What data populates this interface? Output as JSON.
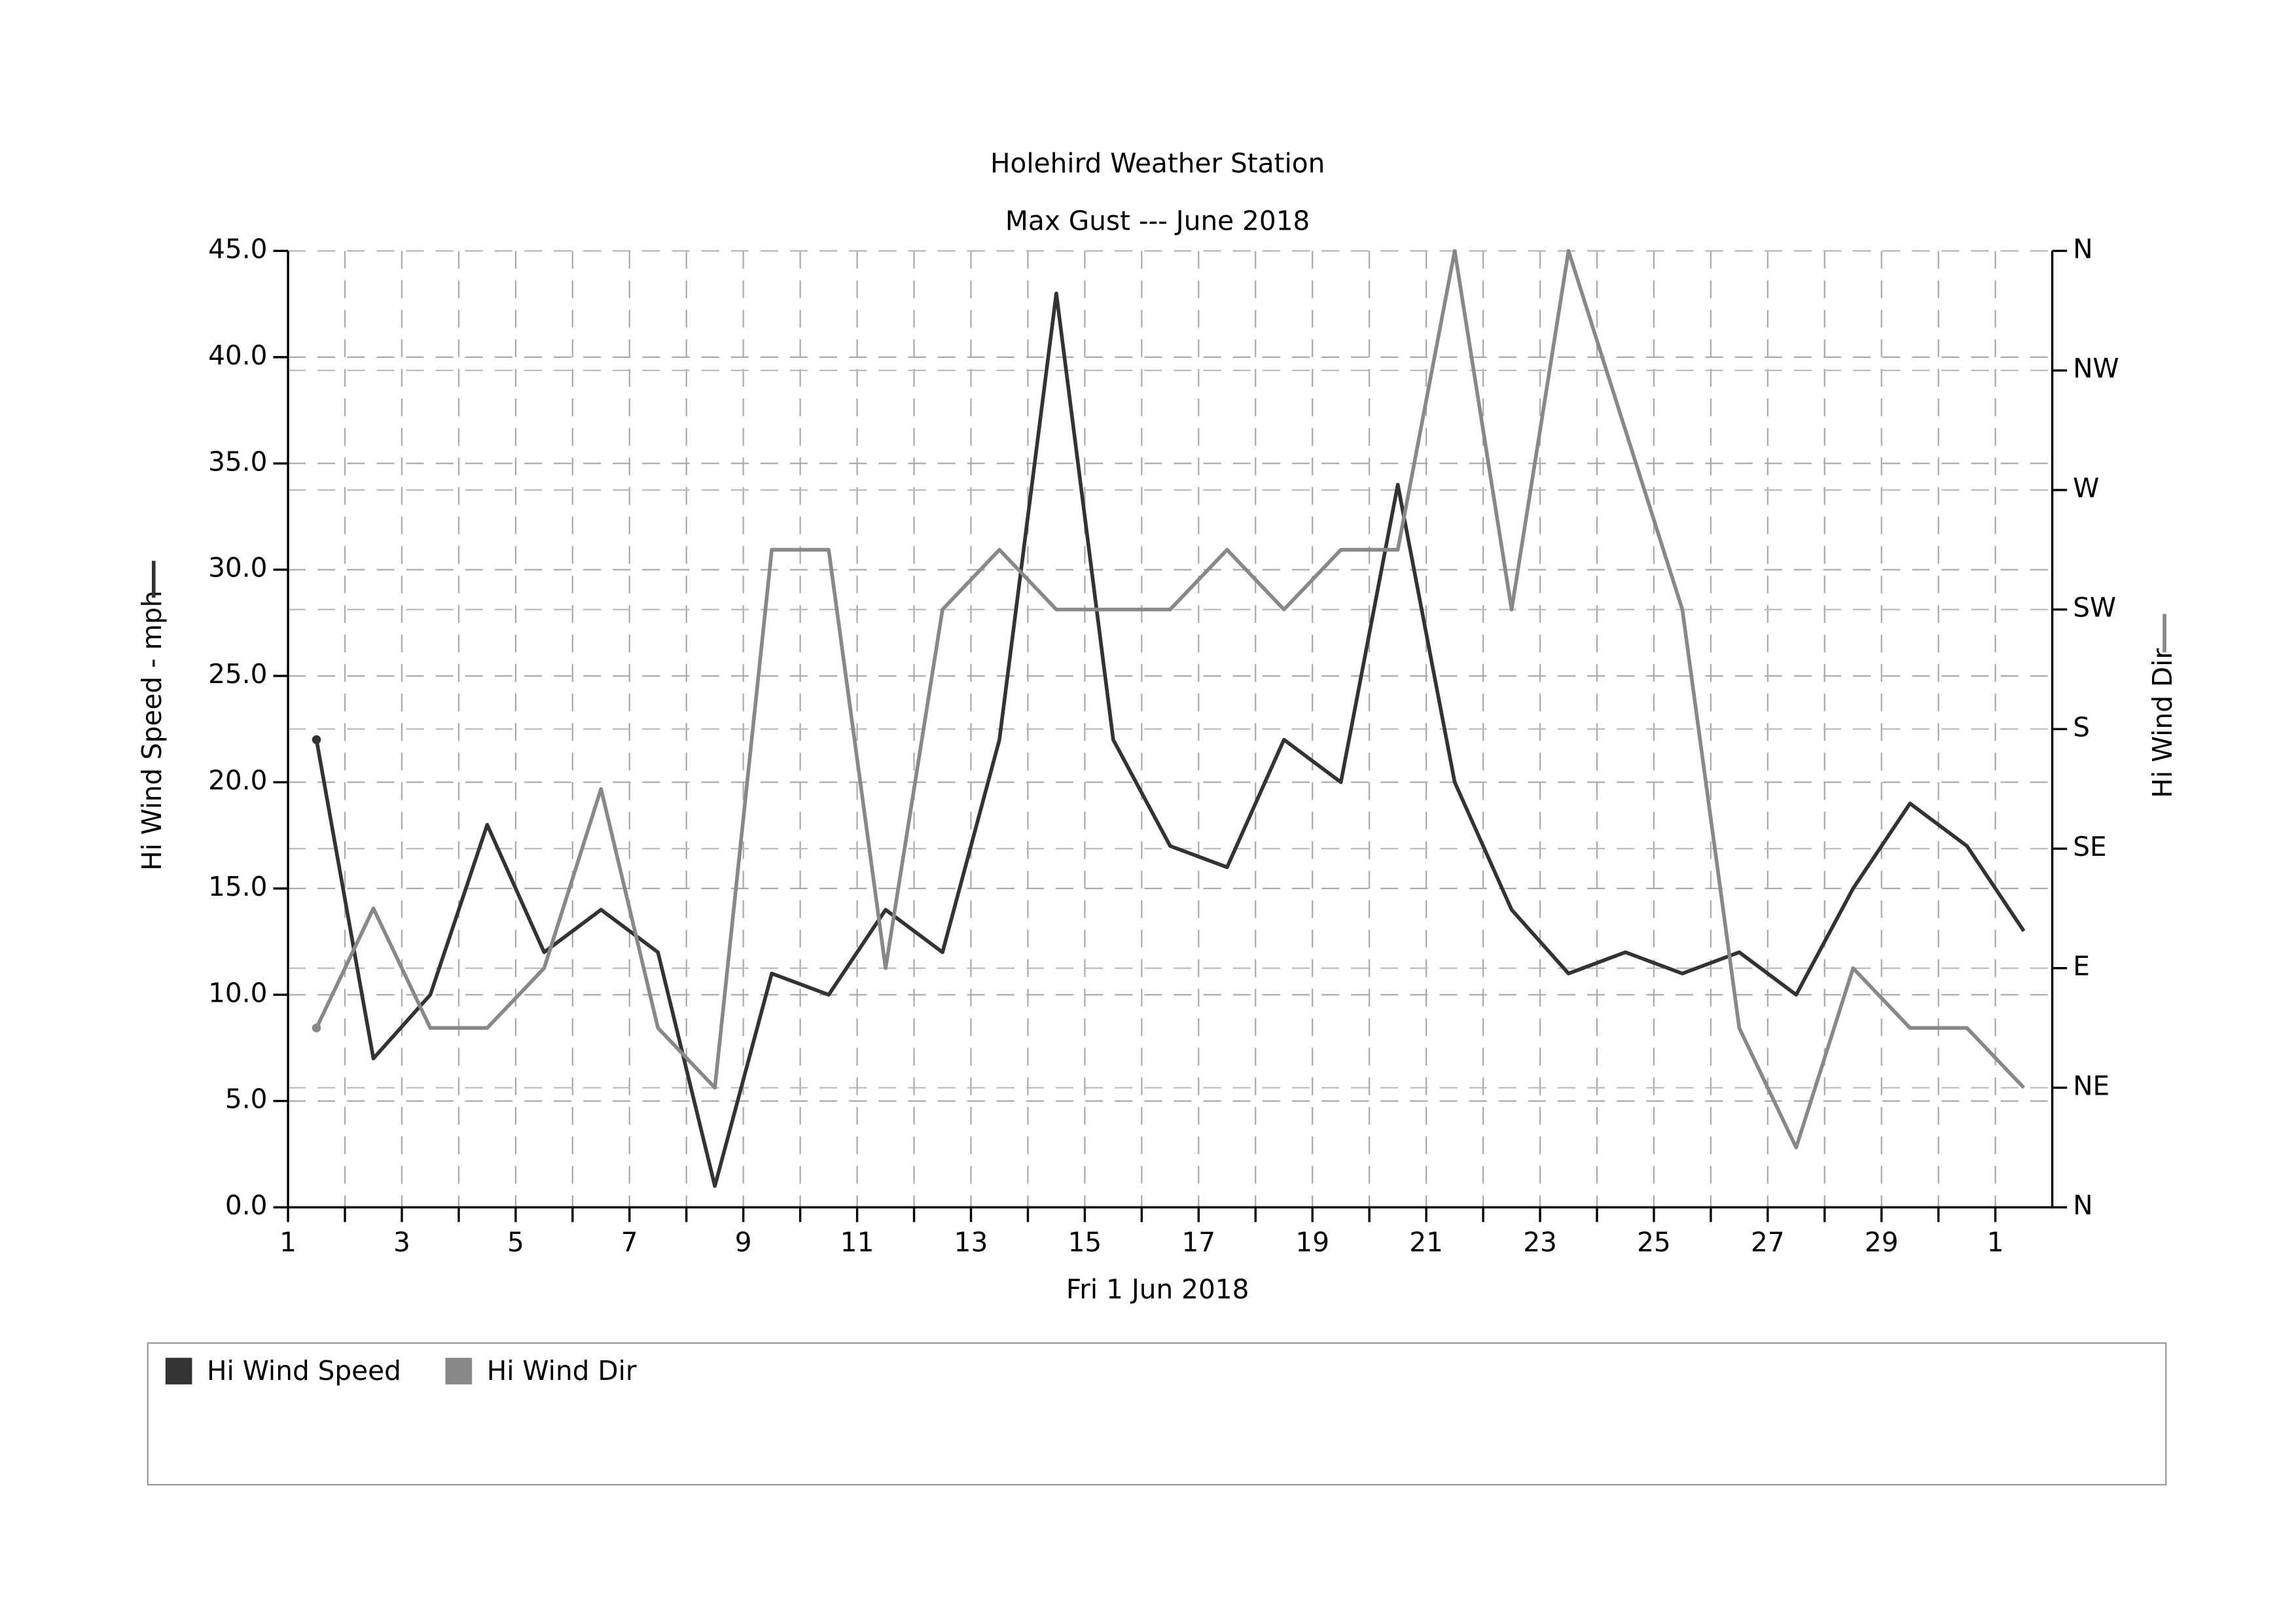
{
  "chart_data": {
    "type": "line",
    "title": "Holehird Weather Station",
    "subtitle": "Max Gust --- June 2018",
    "x_label": "Fri 1 Jun 2018",
    "y_label": "Hi Wind Speed - mph",
    "y2_label": "Hi Wind Dir",
    "xlim": [
      1,
      32
    ],
    "xticks": [
      1,
      3,
      5,
      7,
      9,
      11,
      13,
      15,
      17,
      19,
      21,
      23,
      25,
      27,
      29,
      {
        "value": 31,
        "label": "1"
      }
    ],
    "x_minor_ticks": [
      2,
      4,
      6,
      8,
      10,
      12,
      14,
      16,
      18,
      20,
      22,
      24,
      26,
      28,
      30
    ],
    "ylim": [
      0,
      45
    ],
    "yticks": [
      {
        "value": 0,
        "label": "0.0"
      },
      {
        "value": 5,
        "label": "5.0"
      },
      {
        "value": 10,
        "label": "10.0"
      },
      {
        "value": 15,
        "label": "15.0"
      },
      {
        "value": 20,
        "label": "20.0"
      },
      {
        "value": 25,
        "label": "25.0"
      },
      {
        "value": 30,
        "label": "30.0"
      },
      {
        "value": 35,
        "label": "35.0"
      },
      {
        "value": 40,
        "label": "40.0"
      },
      {
        "value": 45,
        "label": "45.0"
      }
    ],
    "y2lim": [
      0,
      360
    ],
    "y2ticks": [
      {
        "value": 0,
        "label": "N"
      },
      {
        "value": 45,
        "label": "NE"
      },
      {
        "value": 90,
        "label": "E"
      },
      {
        "value": 135,
        "label": "SE"
      },
      {
        "value": 180,
        "label": "S"
      },
      {
        "value": 225,
        "label": "SW"
      },
      {
        "value": 270,
        "label": "W"
      },
      {
        "value": 315,
        "label": "NW"
      },
      {
        "value": 360,
        "label": "N"
      }
    ],
    "grid": true,
    "x": [
      1.5,
      2.5,
      3.5,
      4.5,
      5.5,
      6.5,
      7.5,
      8.5,
      9.5,
      10.5,
      11.5,
      12.5,
      13.5,
      14.5,
      15.5,
      16.5,
      17.5,
      18.5,
      19.5,
      20.5,
      21.5,
      22.5,
      23.5,
      24.5,
      25.5,
      26.5,
      27.5,
      28.5,
      29.5,
      30.5,
      31.5
    ],
    "series": [
      {
        "name": "Hi Wind Speed",
        "color": "#333333",
        "values": [
          22,
          7,
          10,
          18,
          12,
          14,
          12,
          1,
          11,
          10,
          14,
          12,
          22,
          43,
          22,
          17,
          16,
          22,
          20,
          34,
          20,
          14,
          11,
          12,
          11,
          12,
          10,
          15,
          19,
          17,
          13
        ]
      },
      {
        "name": "Hi Wind Dir",
        "color": "#888888",
        "axis": "y2",
        "values": [
          67.5,
          112.5,
          67.5,
          67.5,
          90,
          157.5,
          67.5,
          45,
          247.5,
          247.5,
          90,
          225,
          247.5,
          225,
          225,
          225,
          247.5,
          225,
          247.5,
          247.5,
          360,
          225,
          360,
          292.5,
          225,
          67.5,
          22.5,
          90,
          67.5,
          67.5,
          45
        ]
      }
    ]
  }
}
